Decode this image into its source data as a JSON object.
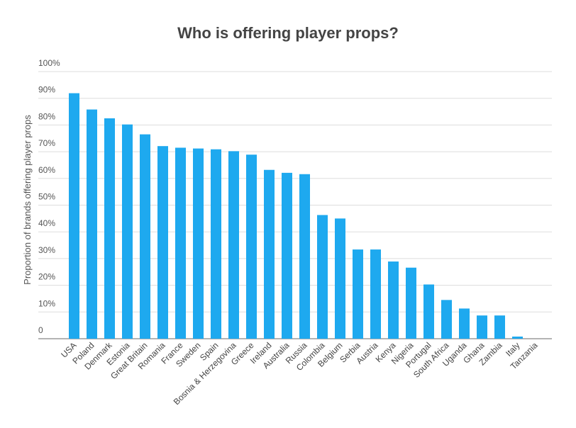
{
  "chart_data": {
    "type": "bar",
    "title": "Who is offering player props?",
    "xlabel": "",
    "ylabel": "Proportion of brands offering player props",
    "ylim": [
      0,
      100
    ],
    "yticks": [
      "0",
      "10%",
      "20%",
      "30%",
      "40%",
      "50%",
      "60%",
      "70%",
      "80%",
      "90%",
      "100%"
    ],
    "grid": true,
    "bar_color": "#1ea9ef",
    "categories": [
      "USA",
      "Poland",
      "Denmark",
      "Estonia",
      "Great Britain",
      "Romania",
      "France",
      "Sweden",
      "Spain",
      "Bosnia & Herzegovina",
      "Greece",
      "Ireland",
      "Australia",
      "Russia",
      "Colombia",
      "Belgium",
      "Serbia",
      "Austria",
      "Kenya",
      "Nigeria",
      "Portugal",
      "South Africa",
      "Uganda",
      "Ghana",
      "Zambia",
      "Italy",
      "Tanzania"
    ],
    "values": [
      91.9,
      85.8,
      82.5,
      80.2,
      76.5,
      72.1,
      71.5,
      71.2,
      70.9,
      70.2,
      68.9,
      63.2,
      62.1,
      61.6,
      46.3,
      45.0,
      33.4,
      33.4,
      28.9,
      26.6,
      20.3,
      14.5,
      11.3,
      8.7,
      8.7,
      0.8,
      0
    ]
  }
}
